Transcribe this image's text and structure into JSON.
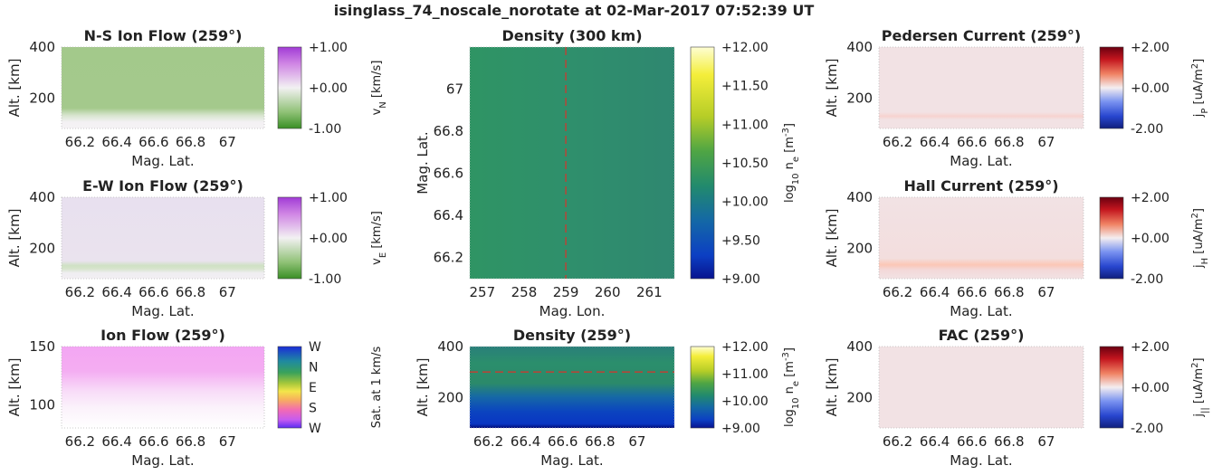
{
  "figure_title": "isinglass_74_noscale_norotate at 02-Mar-2017 07:52:39 UT",
  "colors": {
    "grid_edge": "#bbbbbb",
    "dashed_line": "#d9332b",
    "ns_flow_fill": "#a3c98b",
    "ew_flow_fill": "#e9e0ef",
    "current_fill": "#f2e2e4"
  },
  "chart_data": [
    {
      "id": "ns_ion_flow",
      "type": "heatmap",
      "title": "N-S Ion Flow (259°)",
      "xlabel": "Mag. Lat.",
      "ylabel": "Alt. [km]",
      "xticks": [
        "66.2",
        "66.4",
        "66.6",
        "66.8",
        "67"
      ],
      "xtick_values": [
        66.2,
        66.4,
        66.6,
        66.8,
        67.0
      ],
      "xlim": [
        66.1,
        67.2
      ],
      "yticks": [
        "200",
        "400"
      ],
      "ytick_values": [
        200,
        400
      ],
      "ylim": [
        80,
        400
      ],
      "colorbar": {
        "ticks": [
          "+1.00",
          "+0.00",
          "-1.00"
        ],
        "label": "v_N [km/s]",
        "range": [
          -1.0,
          1.0
        ]
      }
    },
    {
      "id": "ew_ion_flow",
      "type": "heatmap",
      "title": "E-W Ion Flow (259°)",
      "xlabel": "Mag. Lat.",
      "ylabel": "Alt. [km]",
      "xticks": [
        "66.2",
        "66.4",
        "66.6",
        "66.8",
        "67"
      ],
      "xtick_values": [
        66.2,
        66.4,
        66.6,
        66.8,
        67.0
      ],
      "xlim": [
        66.1,
        67.2
      ],
      "yticks": [
        "200",
        "400"
      ],
      "ytick_values": [
        200,
        400
      ],
      "ylim": [
        80,
        400
      ],
      "colorbar": {
        "ticks": [
          "+1.00",
          "+0.00",
          "-1.00"
        ],
        "label": "v_E [km/s]",
        "range": [
          -1.0,
          1.0
        ]
      }
    },
    {
      "id": "ion_flow",
      "type": "heatmap",
      "title": "Ion Flow (259°)",
      "xlabel": "Mag. Lat.",
      "ylabel": "Alt. [km]",
      "xticks": [
        "66.2",
        "66.4",
        "66.6",
        "66.8",
        "67"
      ],
      "xtick_values": [
        66.2,
        66.4,
        66.6,
        66.8,
        67.0
      ],
      "xlim": [
        66.1,
        67.2
      ],
      "yticks": [
        "100",
        "150"
      ],
      "ytick_values": [
        100,
        150
      ],
      "ylim": [
        80,
        150
      ],
      "colorbar": {
        "ticks": [
          "W",
          "N",
          "E",
          "S",
          "W"
        ],
        "label": "Sat. at 1 km/s"
      }
    },
    {
      "id": "density_300km",
      "type": "heatmap",
      "title": "Density (300 km)",
      "xlabel": "Mag. Lon.",
      "ylabel": "Mag. Lat.",
      "xticks": [
        "257",
        "258",
        "259",
        "260",
        "261"
      ],
      "xtick_values": [
        257,
        258,
        259,
        260,
        261
      ],
      "xlim": [
        256.7,
        261.6
      ],
      "yticks": [
        "66.2",
        "66.4",
        "66.6",
        "66.8",
        "67"
      ],
      "ytick_values": [
        66.2,
        66.4,
        66.6,
        66.8,
        67.0
      ],
      "ylim": [
        66.1,
        67.2
      ],
      "reference_line": {
        "axis": "x",
        "value": 259
      },
      "colorbar": {
        "ticks": [
          "+12.00",
          "+11.50",
          "+11.00",
          "+10.50",
          "+10.00",
          "+9.50",
          "+9.00"
        ],
        "label": "log10 n_e [m^-3]",
        "range": [
          9.0,
          12.0
        ]
      }
    },
    {
      "id": "density_259",
      "type": "heatmap",
      "title": "Density (259°)",
      "xlabel": "Mag. Lat.",
      "ylabel": "Alt. [km]",
      "xticks": [
        "66.2",
        "66.4",
        "66.6",
        "66.8",
        "67"
      ],
      "xtick_values": [
        66.2,
        66.4,
        66.6,
        66.8,
        67.0
      ],
      "xlim": [
        66.1,
        67.2
      ],
      "yticks": [
        "200",
        "400"
      ],
      "ytick_values": [
        200,
        400
      ],
      "ylim": [
        80,
        400
      ],
      "reference_line": {
        "axis": "y",
        "value": 300
      },
      "colorbar": {
        "ticks": [
          "+12.00",
          "+11.00",
          "+10.00",
          "+9.00"
        ],
        "label": "log10 n_e [m^-3]",
        "range": [
          9.0,
          12.0
        ]
      }
    },
    {
      "id": "pedersen_current",
      "type": "heatmap",
      "title": "Pedersen Current (259°)",
      "xlabel": "Mag. Lat.",
      "ylabel": "Alt. [km]",
      "xticks": [
        "66.2",
        "66.4",
        "66.6",
        "66.8",
        "67"
      ],
      "xtick_values": [
        66.2,
        66.4,
        66.6,
        66.8,
        67.0
      ],
      "xlim": [
        66.1,
        67.2
      ],
      "yticks": [
        "200",
        "400"
      ],
      "ytick_values": [
        200,
        400
      ],
      "ylim": [
        80,
        400
      ],
      "colorbar": {
        "ticks": [
          "+2.00",
          "+0.00",
          "-2.00"
        ],
        "label": "j_P [uA/m^2]",
        "range": [
          -2.0,
          2.0
        ]
      }
    },
    {
      "id": "hall_current",
      "type": "heatmap",
      "title": "Hall Current (259°)",
      "xlabel": "Mag. Lat.",
      "ylabel": "Alt. [km]",
      "xticks": [
        "66.2",
        "66.4",
        "66.6",
        "66.8",
        "67"
      ],
      "xtick_values": [
        66.2,
        66.4,
        66.6,
        66.8,
        67.0
      ],
      "xlim": [
        66.1,
        67.2
      ],
      "yticks": [
        "200",
        "400"
      ],
      "ytick_values": [
        200,
        400
      ],
      "ylim": [
        80,
        400
      ],
      "colorbar": {
        "ticks": [
          "+2.00",
          "+0.00",
          "-2.00"
        ],
        "label": "j_H [uA/m^2]",
        "range": [
          -2.0,
          2.0
        ]
      }
    },
    {
      "id": "fac",
      "type": "heatmap",
      "title": "FAC (259°)",
      "xlabel": "Mag. Lat.",
      "ylabel": "Alt. [km]",
      "xticks": [
        "66.2",
        "66.4",
        "66.6",
        "66.8",
        "67"
      ],
      "xtick_values": [
        66.2,
        66.4,
        66.6,
        66.8,
        67.0
      ],
      "xlim": [
        66.1,
        67.2
      ],
      "yticks": [
        "200",
        "400"
      ],
      "ytick_values": [
        200,
        400
      ],
      "ylim": [
        80,
        400
      ],
      "colorbar": {
        "ticks": [
          "+2.00",
          "+0.00",
          "-2.00"
        ],
        "label": "j_|| [uA/m^2]",
        "range": [
          -2.0,
          2.0
        ]
      }
    }
  ]
}
